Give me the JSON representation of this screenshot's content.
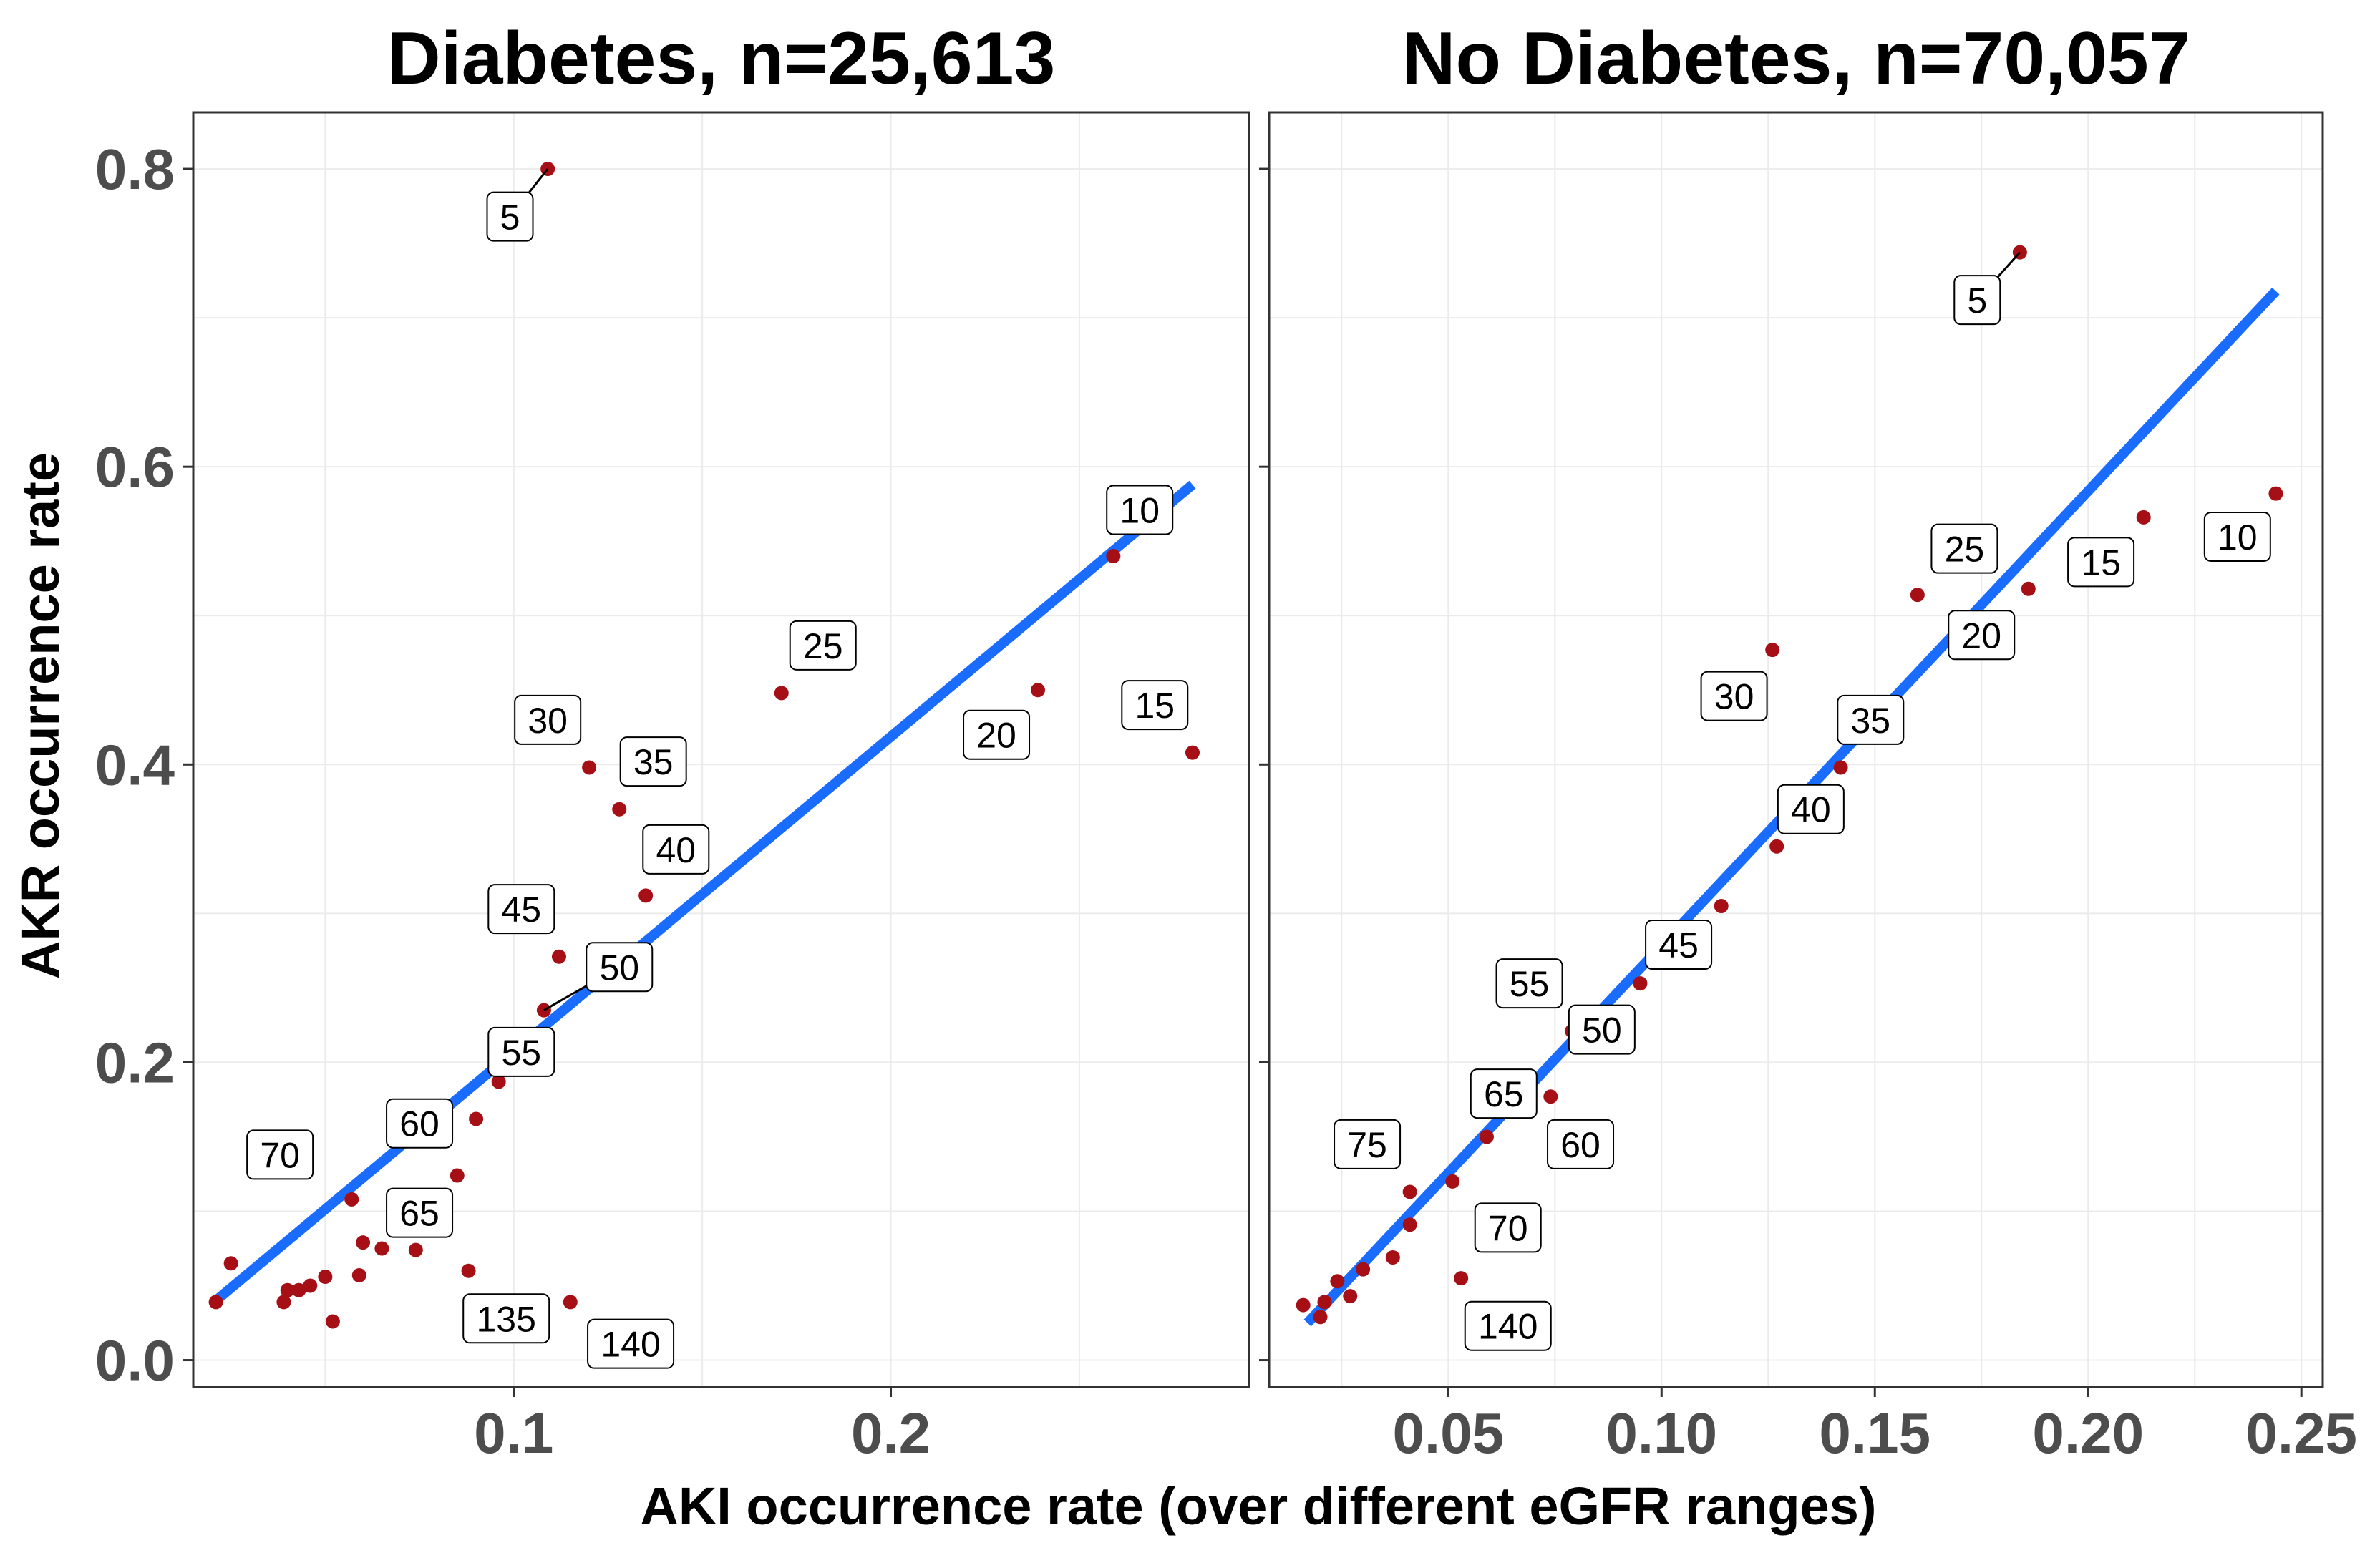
{
  "colors": {
    "point": "#a50f15",
    "line": "#1a6cff",
    "grid": "#ebebeb",
    "frame": "#333333",
    "tick_text": "#4d4d4d"
  },
  "chart_data": {
    "type": "scatter",
    "xlabel": "AKI occurrence rate (over different eGFR ranges)",
    "ylabel": "AKR occurrence rate",
    "panels": [
      {
        "title": "Diabetes, n=25,613",
        "xlim": [
          0.015,
          0.295
        ],
        "ylim": [
          -0.018,
          0.838
        ],
        "x_ticks": [
          0.1,
          0.2
        ],
        "x_tick_labels": [
          "0.1",
          "0.2"
        ],
        "y_ticks": [
          0.0,
          0.2,
          0.4,
          0.6,
          0.8
        ],
        "y_tick_labels": [
          "0.0",
          "0.2",
          "0.4",
          "0.6",
          "0.8"
        ],
        "points": [
          {
            "x": 0.109,
            "y": 0.8
          },
          {
            "x": 0.28,
            "y": 0.408
          },
          {
            "x": 0.259,
            "y": 0.54
          },
          {
            "x": 0.239,
            "y": 0.45
          },
          {
            "x": 0.171,
            "y": 0.448
          },
          {
            "x": 0.12,
            "y": 0.398
          },
          {
            "x": 0.128,
            "y": 0.37
          },
          {
            "x": 0.135,
            "y": 0.312
          },
          {
            "x": 0.112,
            "y": 0.271
          },
          {
            "x": 0.108,
            "y": 0.235
          },
          {
            "x": 0.096,
            "y": 0.187
          },
          {
            "x": 0.09,
            "y": 0.162
          },
          {
            "x": 0.085,
            "y": 0.124
          },
          {
            "x": 0.074,
            "y": 0.074
          },
          {
            "x": 0.065,
            "y": 0.075
          },
          {
            "x": 0.088,
            "y": 0.06
          },
          {
            "x": 0.115,
            "y": 0.039
          },
          {
            "x": 0.057,
            "y": 0.108
          },
          {
            "x": 0.06,
            "y": 0.079
          },
          {
            "x": 0.059,
            "y": 0.057
          },
          {
            "x": 0.05,
            "y": 0.056
          },
          {
            "x": 0.046,
            "y": 0.05
          },
          {
            "x": 0.043,
            "y": 0.047
          },
          {
            "x": 0.04,
            "y": 0.047
          },
          {
            "x": 0.039,
            "y": 0.039
          },
          {
            "x": 0.052,
            "y": 0.026
          },
          {
            "x": 0.025,
            "y": 0.065
          },
          {
            "x": 0.021,
            "y": 0.039
          }
        ],
        "labels": [
          {
            "text": "5",
            "x": 0.099,
            "y": 0.768,
            "px": 0.109,
            "py": 0.8
          },
          {
            "text": "10",
            "x": 0.266,
            "y": 0.571
          },
          {
            "text": "15",
            "x": 0.27,
            "y": 0.44
          },
          {
            "text": "20",
            "x": 0.228,
            "y": 0.42
          },
          {
            "text": "25",
            "x": 0.182,
            "y": 0.48
          },
          {
            "text": "30",
            "x": 0.109,
            "y": 0.43
          },
          {
            "text": "35",
            "x": 0.137,
            "y": 0.402
          },
          {
            "text": "40",
            "x": 0.143,
            "y": 0.343
          },
          {
            "text": "45",
            "x": 0.102,
            "y": 0.303
          },
          {
            "text": "50",
            "x": 0.128,
            "y": 0.264,
            "px": 0.108,
            "py": 0.235
          },
          {
            "text": "55",
            "x": 0.102,
            "y": 0.207
          },
          {
            "text": "60",
            "x": 0.075,
            "y": 0.159
          },
          {
            "text": "65",
            "x": 0.075,
            "y": 0.099
          },
          {
            "text": "70",
            "x": 0.038,
            "y": 0.138
          },
          {
            "text": "135",
            "x": 0.098,
            "y": 0.028
          },
          {
            "text": "140",
            "x": 0.131,
            "y": 0.011
          }
        ],
        "fit_line": [
          [
            0.021,
            0.04
          ],
          [
            0.28,
            0.588
          ]
        ]
      },
      {
        "title": "No Diabetes, n=70,057",
        "xlim": [
          0.008,
          0.255
        ],
        "ylim": [
          -0.018,
          0.838
        ],
        "x_ticks": [
          0.05,
          0.1,
          0.15,
          0.2,
          0.25
        ],
        "x_tick_labels": [
          "0.05",
          "0.10",
          "0.15",
          "0.20",
          "0.25"
        ],
        "y_ticks": [
          0.0,
          0.2,
          0.4,
          0.6,
          0.8
        ],
        "y_tick_labels": [
          "0.0",
          "0.2",
          "0.4",
          "0.6",
          "0.8"
        ],
        "points": [
          {
            "x": 0.184,
            "y": 0.744
          },
          {
            "x": 0.244,
            "y": 0.582
          },
          {
            "x": 0.213,
            "y": 0.566
          },
          {
            "x": 0.186,
            "y": 0.518
          },
          {
            "x": 0.16,
            "y": 0.514
          },
          {
            "x": 0.126,
            "y": 0.477
          },
          {
            "x": 0.142,
            "y": 0.398
          },
          {
            "x": 0.127,
            "y": 0.345
          },
          {
            "x": 0.114,
            "y": 0.305
          },
          {
            "x": 0.095,
            "y": 0.253
          },
          {
            "x": 0.079,
            "y": 0.221
          },
          {
            "x": 0.074,
            "y": 0.177
          },
          {
            "x": 0.059,
            "y": 0.15
          },
          {
            "x": 0.051,
            "y": 0.12
          },
          {
            "x": 0.041,
            "y": 0.113
          },
          {
            "x": 0.041,
            "y": 0.091
          },
          {
            "x": 0.037,
            "y": 0.069
          },
          {
            "x": 0.053,
            "y": 0.055
          },
          {
            "x": 0.03,
            "y": 0.061
          },
          {
            "x": 0.027,
            "y": 0.043
          },
          {
            "x": 0.024,
            "y": 0.053
          },
          {
            "x": 0.021,
            "y": 0.039
          },
          {
            "x": 0.02,
            "y": 0.029
          },
          {
            "x": 0.016,
            "y": 0.037
          }
        ],
        "labels": [
          {
            "text": "5",
            "x": 0.174,
            "y": 0.712,
            "px": 0.184,
            "py": 0.744
          },
          {
            "text": "10",
            "x": 0.235,
            "y": 0.553
          },
          {
            "text": "15",
            "x": 0.203,
            "y": 0.536
          },
          {
            "text": "20",
            "x": 0.175,
            "y": 0.487
          },
          {
            "text": "25",
            "x": 0.171,
            "y": 0.545
          },
          {
            "text": "30",
            "x": 0.117,
            "y": 0.446
          },
          {
            "text": "35",
            "x": 0.149,
            "y": 0.43
          },
          {
            "text": "40",
            "x": 0.135,
            "y": 0.37
          },
          {
            "text": "45",
            "x": 0.104,
            "y": 0.279
          },
          {
            "text": "50",
            "x": 0.086,
            "y": 0.222
          },
          {
            "text": "55",
            "x": 0.069,
            "y": 0.253
          },
          {
            "text": "60",
            "x": 0.081,
            "y": 0.145
          },
          {
            "text": "65",
            "x": 0.063,
            "y": 0.179
          },
          {
            "text": "70",
            "x": 0.064,
            "y": 0.089
          },
          {
            "text": "75",
            "x": 0.031,
            "y": 0.145
          },
          {
            "text": "140",
            "x": 0.064,
            "y": 0.023
          }
        ],
        "fit_line": [
          [
            0.017,
            0.025
          ],
          [
            0.244,
            0.718
          ]
        ]
      }
    ]
  }
}
